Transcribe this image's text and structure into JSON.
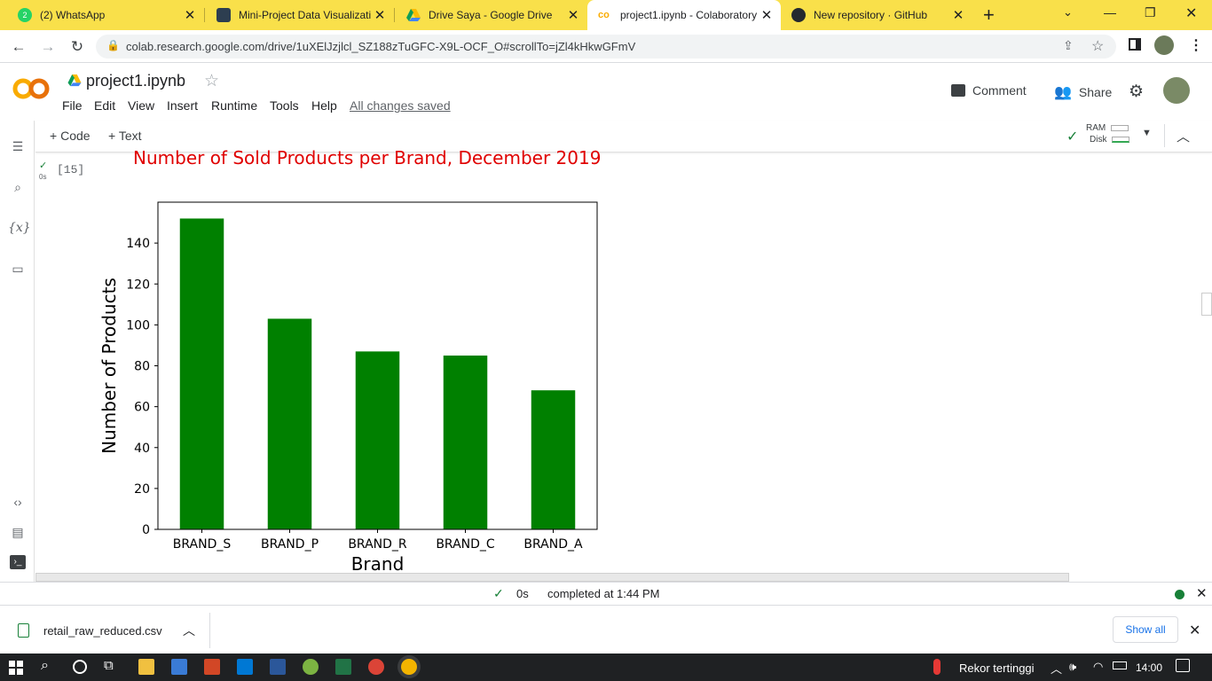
{
  "browser": {
    "tabs": [
      {
        "title": "(2) WhatsApp",
        "icon": "whatsapp-icon"
      },
      {
        "title": "Mini-Project Data Visualizatio",
        "icon": "dicoding-icon"
      },
      {
        "title": "Drive Saya - Google Drive",
        "icon": "google-drive-icon"
      },
      {
        "title": "project1.ipynb - Colaboratory",
        "icon": "colab-icon",
        "active": true
      },
      {
        "title": "New repository · GitHub",
        "icon": "github-icon"
      }
    ],
    "new_tab": "+",
    "url": "colab.research.google.com/drive/1uXElJzjlcl_SZ188zTuGFC-X9L-OCF_O#scrollTo=jZl4kHkwGFmV"
  },
  "colab": {
    "logo": "CO",
    "notebook_title": "project1.ipynb",
    "menu": [
      "File",
      "Edit",
      "View",
      "Insert",
      "Runtime",
      "Tools",
      "Help"
    ],
    "saved_status": "All changes saved",
    "comment_label": "Comment",
    "share_label": "Share",
    "toolbar": {
      "add_code": "Code",
      "add_text": "Text",
      "ram_label": "RAM",
      "disk_label": "Disk"
    },
    "cell": {
      "exec_count": "[15]",
      "exec_time": "0s"
    }
  },
  "chart_data": {
    "type": "bar",
    "title": "Number of Sold Products per Brand, December 2019",
    "categories": [
      "BRAND_S",
      "BRAND_P",
      "BRAND_R",
      "BRAND_C",
      "BRAND_A"
    ],
    "values": [
      152,
      103,
      87,
      85,
      68
    ],
    "xlabel": "Brand",
    "ylabel": "Number of Products",
    "ylim": [
      0,
      160
    ],
    "yticks": [
      0,
      20,
      40,
      60,
      80,
      100,
      120,
      140
    ],
    "bar_color": "#008000",
    "title_color": "#e00000",
    "grid": false
  },
  "status": {
    "check": "✓",
    "time": "0s",
    "message": "completed at 1:44 PM"
  },
  "downloads": {
    "file": "retail_raw_reduced.csv",
    "show_all": "Show all"
  },
  "taskbar": {
    "weather": "Rekor tertinggi",
    "clock": "14:00"
  }
}
